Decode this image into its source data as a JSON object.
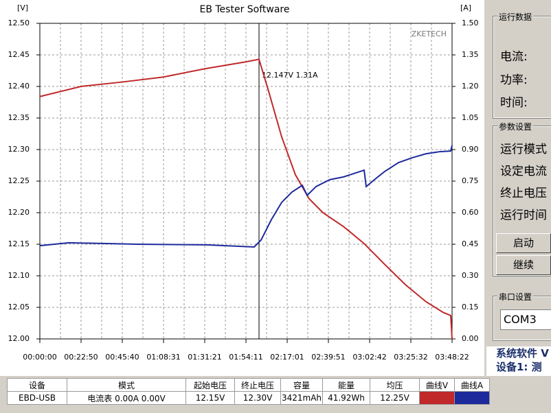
{
  "chart_data": {
    "type": "line",
    "title": "EB Tester Software",
    "y_label": "[V]",
    "y2_label": "[A]",
    "watermark": "ZKETECH",
    "xlim": [
      0,
      13702
    ],
    "xticks": [
      {
        "value": 0,
        "label": "00:00:00"
      },
      {
        "value": 1370,
        "label": "00:22:50"
      },
      {
        "value": 2740,
        "label": "00:45:40"
      },
      {
        "value": 4111,
        "label": "01:08:31"
      },
      {
        "value": 5481,
        "label": "01:31:21"
      },
      {
        "value": 6851,
        "label": "01:54:11"
      },
      {
        "value": 8221,
        "label": "02:17:01"
      },
      {
        "value": 9591,
        "label": "02:39:51"
      },
      {
        "value": 10962,
        "label": "03:02:42"
      },
      {
        "value": 12332,
        "label": "03:25:32"
      },
      {
        "value": 13702,
        "label": "03:48:22"
      }
    ],
    "ylim": [
      12.0,
      12.5
    ],
    "yticks": [
      {
        "value": 12.0,
        "label": "12.00"
      },
      {
        "value": 12.05,
        "label": "12.05"
      },
      {
        "value": 12.1,
        "label": "12.10"
      },
      {
        "value": 12.15,
        "label": "12.15"
      },
      {
        "value": 12.2,
        "label": "12.20"
      },
      {
        "value": 12.25,
        "label": "12.25"
      },
      {
        "value": 12.3,
        "label": "12.30"
      },
      {
        "value": 12.35,
        "label": "12.35"
      },
      {
        "value": 12.4,
        "label": "12.40"
      },
      {
        "value": 12.45,
        "label": "12.45"
      },
      {
        "value": 12.5,
        "label": "12.50"
      }
    ],
    "y2lim": [
      0,
      1.5
    ],
    "y2ticks": [
      {
        "value": 0,
        "label": "0.00"
      },
      {
        "value": 0.15,
        "label": "0.15"
      },
      {
        "value": 0.3,
        "label": "0.30"
      },
      {
        "value": 0.45,
        "label": "0.45"
      },
      {
        "value": 0.6,
        "label": "0.60"
      },
      {
        "value": 0.75,
        "label": "0.75"
      },
      {
        "value": 0.9,
        "label": "0.90"
      },
      {
        "value": 1.05,
        "label": "1.05"
      },
      {
        "value": 1.2,
        "label": "1.20"
      },
      {
        "value": 1.35,
        "label": "1.35"
      },
      {
        "value": 1.5,
        "label": "1.50"
      }
    ],
    "grid": true,
    "annotation": {
      "text": "12.147V 1.31A",
      "x": 7285
    },
    "series": [
      {
        "name": "曲线V",
        "color": "#c0282a",
        "x": [
          0,
          1370,
          2740,
          4111,
          5481,
          6851,
          7285,
          7582,
          8039,
          8495,
          8952,
          9409,
          10094,
          10779,
          11464,
          12149,
          12834,
          13405,
          13657,
          13702
        ],
        "values": [
          12.384,
          12.4,
          12.407,
          12.415,
          12.428,
          12.439,
          12.443,
          12.396,
          12.32,
          12.26,
          12.222,
          12.2,
          12.178,
          12.151,
          12.118,
          12.086,
          12.059,
          12.042,
          12.037,
          12.0
        ]
      },
      {
        "name": "曲线A",
        "color": "#1c2a9c",
        "axis": "y2",
        "x": [
          0,
          959,
          3243,
          5527,
          7125,
          7354,
          7696,
          8039,
          8381,
          8724,
          8884,
          9180,
          9637,
          10094,
          10779,
          10848,
          11122,
          11464,
          11921,
          12377,
          12834,
          13291,
          13657,
          13702
        ],
        "values": [
          0.443,
          0.457,
          0.45,
          0.447,
          0.437,
          0.47,
          0.567,
          0.649,
          0.698,
          0.73,
          0.682,
          0.724,
          0.757,
          0.77,
          0.802,
          0.724,
          0.757,
          0.796,
          0.838,
          0.861,
          0.88,
          0.89,
          0.893,
          0.92
        ]
      }
    ]
  },
  "table": {
    "headers": [
      "设备",
      "模式",
      "起始电压",
      "终止电压",
      "容量",
      "能量",
      "均压"
    ],
    "rows": [
      [
        "EBD-USB",
        "电流表  0.00A 0.00V",
        "12.15V",
        "12.30V",
        "3421mAh",
        "41.92Wh",
        "12.25V"
      ]
    ]
  },
  "panel": {
    "run_group": "运行数据",
    "run_labels": [
      "电流:",
      "功率:",
      "时间:"
    ],
    "param_group": "参数设置",
    "param_labels": [
      "运行模式",
      "设定电流",
      "终止电压",
      "运行时间"
    ],
    "buttons": [
      "启动",
      "继续"
    ],
    "port_group": "串口设置",
    "port": "COM3",
    "status": [
      "系统软件 V",
      "设备1: 测"
    ]
  }
}
